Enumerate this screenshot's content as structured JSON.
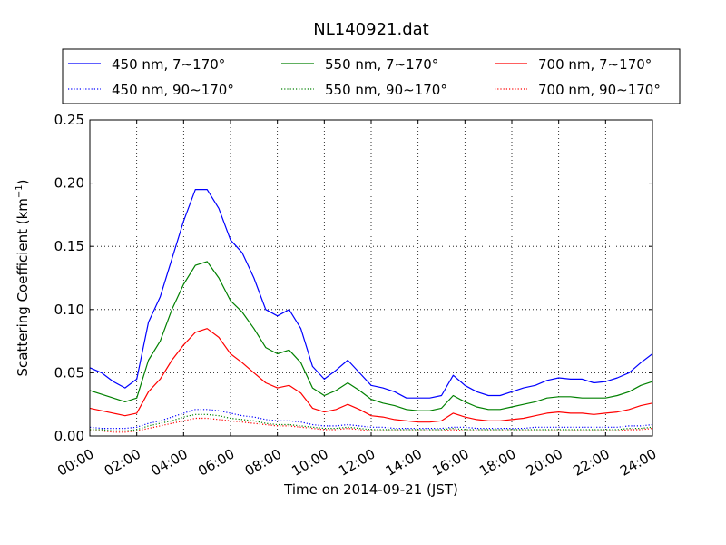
{
  "chart_data": {
    "type": "line",
    "title": "NL140921.dat",
    "xlabel": "Time on 2014-09-21 (JST)",
    "ylabel_prefix": "Scattering Coefficient (km",
    "ylabel_sup": "−1",
    "ylabel_suffix": ")",
    "xlim": [
      0,
      24
    ],
    "ylim": [
      0,
      0.25
    ],
    "x_ticks": [
      0,
      2,
      4,
      6,
      8,
      10,
      12,
      14,
      16,
      18,
      20,
      22,
      24
    ],
    "x_tick_labels": [
      "00:00",
      "02:00",
      "04:00",
      "06:00",
      "08:00",
      "10:00",
      "12:00",
      "14:00",
      "16:00",
      "18:00",
      "20:00",
      "22:00",
      "24:00"
    ],
    "y_ticks": [
      0,
      0.05,
      0.1,
      0.15,
      0.2,
      0.25
    ],
    "y_tick_labels": [
      "0.00",
      "0.05",
      "0.10",
      "0.15",
      "0.20",
      "0.25"
    ],
    "grid": true,
    "legend_position": "top",
    "x": [
      0,
      0.5,
      1,
      1.5,
      2,
      2.5,
      3,
      3.5,
      4,
      4.5,
      5,
      5.5,
      6,
      6.5,
      7,
      7.5,
      8,
      8.5,
      9,
      9.5,
      10,
      10.5,
      11,
      11.5,
      12,
      12.5,
      13,
      13.5,
      14,
      14.5,
      15,
      15.5,
      16,
      16.5,
      17,
      17.5,
      18,
      18.5,
      19,
      19.5,
      20,
      20.5,
      21,
      21.5,
      22,
      22.5,
      23,
      23.5,
      24
    ],
    "series": [
      {
        "name": "450 nm, 7∼170°",
        "color": "#0000ff",
        "dash": "solid",
        "values": [
          0.054,
          0.05,
          0.043,
          0.038,
          0.045,
          0.09,
          0.11,
          0.14,
          0.17,
          0.195,
          0.195,
          0.18,
          0.155,
          0.145,
          0.125,
          0.1,
          0.095,
          0.1,
          0.085,
          0.055,
          0.045,
          0.052,
          0.06,
          0.05,
          0.04,
          0.038,
          0.035,
          0.03,
          0.03,
          0.03,
          0.032,
          0.048,
          0.04,
          0.035,
          0.032,
          0.032,
          0.035,
          0.038,
          0.04,
          0.044,
          0.046,
          0.045,
          0.045,
          0.042,
          0.043,
          0.046,
          0.05,
          0.058,
          0.065
        ]
      },
      {
        "name": "550 nm, 7∼170°",
        "color": "#008000",
        "dash": "solid",
        "values": [
          0.036,
          0.033,
          0.03,
          0.027,
          0.03,
          0.06,
          0.075,
          0.1,
          0.12,
          0.135,
          0.138,
          0.125,
          0.107,
          0.098,
          0.085,
          0.07,
          0.065,
          0.068,
          0.058,
          0.038,
          0.032,
          0.036,
          0.042,
          0.036,
          0.029,
          0.026,
          0.024,
          0.021,
          0.02,
          0.02,
          0.022,
          0.032,
          0.027,
          0.023,
          0.021,
          0.021,
          0.023,
          0.025,
          0.027,
          0.03,
          0.031,
          0.031,
          0.03,
          0.03,
          0.03,
          0.032,
          0.035,
          0.04,
          0.043
        ]
      },
      {
        "name": "700 nm, 7∼170°",
        "color": "#ff0000",
        "dash": "solid",
        "values": [
          0.022,
          0.02,
          0.018,
          0.016,
          0.018,
          0.035,
          0.045,
          0.06,
          0.072,
          0.082,
          0.085,
          0.078,
          0.065,
          0.058,
          0.05,
          0.042,
          0.038,
          0.04,
          0.034,
          0.022,
          0.019,
          0.021,
          0.025,
          0.021,
          0.016,
          0.015,
          0.013,
          0.012,
          0.011,
          0.011,
          0.012,
          0.018,
          0.015,
          0.013,
          0.012,
          0.012,
          0.013,
          0.014,
          0.016,
          0.018,
          0.019,
          0.018,
          0.018,
          0.017,
          0.018,
          0.019,
          0.021,
          0.024,
          0.026
        ]
      },
      {
        "name": "450 nm, 90∼170°",
        "color": "#0000ff",
        "dash": "dotted",
        "values": [
          0.007,
          0.006,
          0.006,
          0.006,
          0.007,
          0.01,
          0.012,
          0.015,
          0.018,
          0.021,
          0.021,
          0.02,
          0.018,
          0.016,
          0.015,
          0.013,
          0.012,
          0.012,
          0.011,
          0.009,
          0.008,
          0.008,
          0.009,
          0.008,
          0.007,
          0.007,
          0.006,
          0.006,
          0.006,
          0.006,
          0.006,
          0.007,
          0.007,
          0.006,
          0.006,
          0.006,
          0.006,
          0.006,
          0.007,
          0.007,
          0.007,
          0.007,
          0.007,
          0.007,
          0.007,
          0.007,
          0.008,
          0.008,
          0.009
        ]
      },
      {
        "name": "550 nm, 90∼170°",
        "color": "#008000",
        "dash": "dotted",
        "values": [
          0.005,
          0.005,
          0.004,
          0.004,
          0.005,
          0.008,
          0.01,
          0.012,
          0.015,
          0.017,
          0.017,
          0.016,
          0.014,
          0.013,
          0.012,
          0.01,
          0.009,
          0.009,
          0.008,
          0.007,
          0.006,
          0.006,
          0.007,
          0.006,
          0.005,
          0.005,
          0.005,
          0.005,
          0.005,
          0.005,
          0.005,
          0.006,
          0.005,
          0.005,
          0.005,
          0.005,
          0.005,
          0.005,
          0.005,
          0.005,
          0.005,
          0.005,
          0.005,
          0.005,
          0.005,
          0.005,
          0.006,
          0.006,
          0.007
        ]
      },
      {
        "name": "700 nm, 90∼170°",
        "color": "#ff0000",
        "dash": "dotted",
        "values": [
          0.004,
          0.004,
          0.003,
          0.003,
          0.004,
          0.006,
          0.008,
          0.01,
          0.012,
          0.014,
          0.014,
          0.013,
          0.012,
          0.011,
          0.01,
          0.009,
          0.008,
          0.008,
          0.007,
          0.006,
          0.005,
          0.005,
          0.006,
          0.005,
          0.004,
          0.004,
          0.004,
          0.004,
          0.004,
          0.004,
          0.004,
          0.005,
          0.004,
          0.004,
          0.004,
          0.004,
          0.004,
          0.004,
          0.004,
          0.004,
          0.004,
          0.004,
          0.004,
          0.004,
          0.004,
          0.004,
          0.005,
          0.005,
          0.006
        ]
      }
    ]
  }
}
